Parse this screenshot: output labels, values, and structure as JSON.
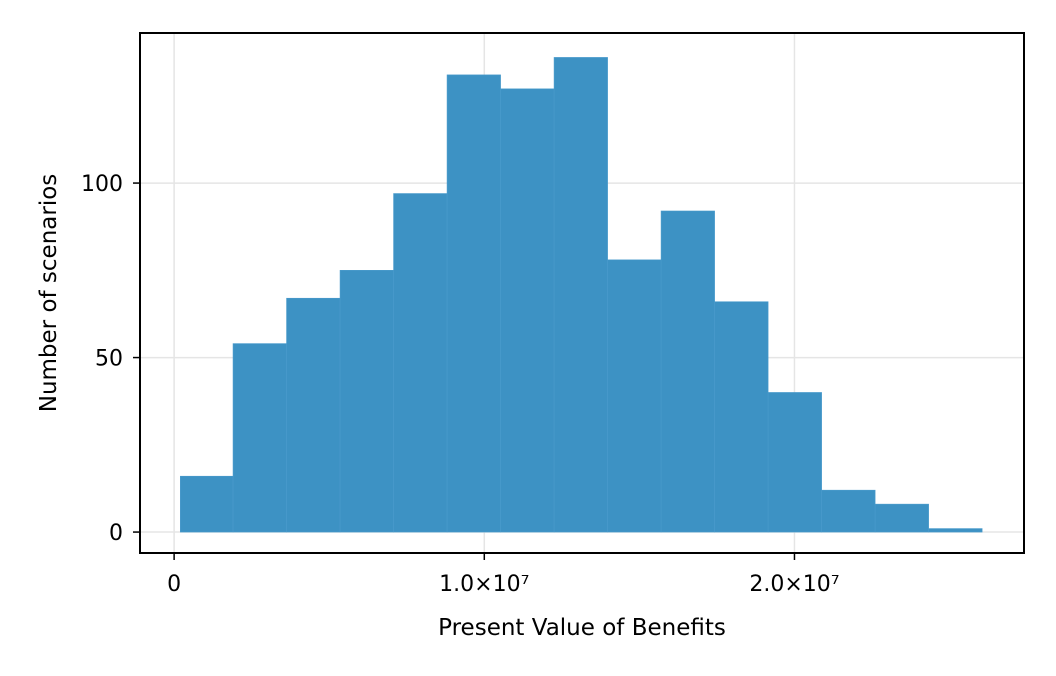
{
  "chart_data": {
    "type": "bar",
    "title": "",
    "xlabel": "Present Value of Benefits",
    "ylabel": "Number of scenarios",
    "bins": [
      {
        "x0": 200000,
        "x1": 1900000,
        "count": 16
      },
      {
        "x0": 1900000,
        "x1": 3625000,
        "count": 54
      },
      {
        "x0": 3625000,
        "x1": 5350000,
        "count": 67
      },
      {
        "x0": 5350000,
        "x1": 7075000,
        "count": 75
      },
      {
        "x0": 7075000,
        "x1": 8800000,
        "count": 97
      },
      {
        "x0": 8800000,
        "x1": 10525000,
        "count": 131
      },
      {
        "x0": 10525000,
        "x1": 12250000,
        "count": 127
      },
      {
        "x0": 12250000,
        "x1": 13975000,
        "count": 136
      },
      {
        "x0": 13975000,
        "x1": 15700000,
        "count": 78
      },
      {
        "x0": 15700000,
        "x1": 17425000,
        "count": 92
      },
      {
        "x0": 17425000,
        "x1": 19150000,
        "count": 66
      },
      {
        "x0": 19150000,
        "x1": 20875000,
        "count": 40
      },
      {
        "x0": 20875000,
        "x1": 22600000,
        "count": 12
      },
      {
        "x0": 22600000,
        "x1": 24325000,
        "count": 8
      },
      {
        "x0": 24325000,
        "x1": 26050000,
        "count": 1
      }
    ],
    "xlim": [
      -1100000,
      27400000
    ],
    "ylim": [
      -6,
      143
    ],
    "xticks": [
      {
        "value": 0,
        "label": "0"
      },
      {
        "value": 10000000,
        "label": "1.0×10⁷"
      },
      {
        "value": 20000000,
        "label": "2.0×10⁷"
      }
    ],
    "yticks": [
      {
        "value": 0,
        "label": "0"
      },
      {
        "value": 50,
        "label": "50"
      },
      {
        "value": 100,
        "label": "100"
      }
    ],
    "grid": true,
    "legend": "none",
    "bar_color": "#3990c3",
    "grid_color": "#e5e5e5",
    "frame_color": "#000000"
  }
}
